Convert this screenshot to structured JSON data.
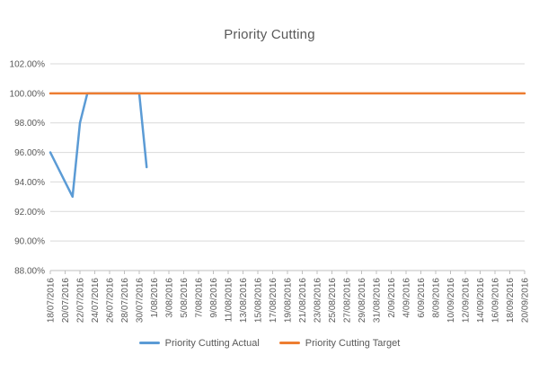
{
  "chart": {
    "title": "Priority Cutting",
    "y_axis": {
      "min": 88,
      "max": 102,
      "step": 2,
      "tick_labels": [
        "102.00%",
        "100.00%",
        "98.00%",
        "96.00%",
        "94.00%",
        "92.00%",
        "90.00%",
        "88.00%"
      ]
    },
    "x_axis": {
      "start_date": "18/07/2016",
      "end_date": "20/09/2016",
      "tick_labels": [
        "18/07/2016",
        "20/07/2016",
        "22/07/2016",
        "24/07/2016",
        "26/07/2016",
        "28/07/2016",
        "30/07/2016",
        "1/08/2016",
        "3/08/2016",
        "5/08/2016",
        "7/08/2016",
        "9/08/2016",
        "11/08/2016",
        "13/08/2016",
        "15/08/2016",
        "17/08/2016",
        "19/08/2016",
        "21/08/2016",
        "23/08/2016",
        "25/08/2016",
        "27/08/2016",
        "29/08/2016",
        "31/08/2016",
        "2/09/2016",
        "4/09/2016",
        "6/09/2016",
        "8/09/2016",
        "10/09/2016",
        "12/09/2016",
        "14/09/2016",
        "16/09/2016",
        "18/09/2016",
        "20/09/2016"
      ]
    },
    "legend": [
      {
        "name": "Priority Cutting Actual",
        "color": "#5B9BD5"
      },
      {
        "name": "Priority Cutting Target",
        "color": "#ED7D31"
      }
    ],
    "colors": {
      "actual_line": "#5B9BD5",
      "target_line": "#ED7D31",
      "gridline": "#D9D9D9",
      "axis_line": "#BFBFBF",
      "text": "#595959"
    }
  },
  "chart_data": {
    "type": "line",
    "title": "Priority Cutting",
    "xlabel": "",
    "ylabel": "",
    "values_unit": "percent",
    "ylim": [
      88,
      102
    ],
    "ytick_step": 2,
    "grid": true,
    "legend_position": "bottom",
    "x_is_daily_dates": true,
    "series": [
      {
        "name": "Priority Cutting Actual",
        "color": "#5B9BD5",
        "points": [
          [
            "18/07/2016",
            96
          ],
          [
            "19/07/2016",
            95
          ],
          [
            "20/07/2016",
            94
          ],
          [
            "21/07/2016",
            93
          ],
          [
            "22/07/2016",
            98
          ],
          [
            "23/07/2016",
            100
          ],
          [
            "24/07/2016",
            100
          ],
          [
            "25/07/2016",
            100
          ],
          [
            "26/07/2016",
            100
          ],
          [
            "27/07/2016",
            100
          ],
          [
            "28/07/2016",
            100
          ],
          [
            "29/07/2016",
            100
          ],
          [
            "30/07/2016",
            100
          ],
          [
            "31/07/2016",
            95
          ]
        ]
      },
      {
        "name": "Priority Cutting Target",
        "color": "#ED7D31",
        "points": [
          [
            "18/07/2016",
            100
          ],
          [
            "20/09/2016",
            100
          ]
        ]
      }
    ]
  }
}
